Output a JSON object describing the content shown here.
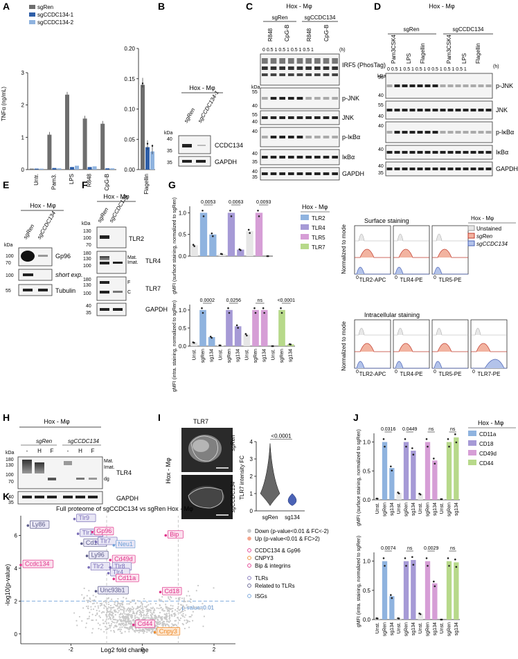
{
  "panels": {
    "A": {
      "label": "A"
    },
    "B": {
      "label": "B"
    },
    "C": {
      "label": "C"
    },
    "D": {
      "label": "D"
    },
    "E": {
      "label": "E"
    },
    "F": {
      "label": "F"
    },
    "G": {
      "label": "G"
    },
    "H": {
      "label": "H"
    },
    "I": {
      "label": "I"
    },
    "J": {
      "label": "J"
    },
    "K": {
      "label": "K"
    }
  },
  "common": {
    "hox": "Hox - Mφ",
    "sgren": "sgRen",
    "sgccdc": "sgCCDC134",
    "kda": "kDa",
    "gapdh": "GAPDH",
    "unst": "Unst.",
    "sg134": "sg134"
  },
  "panelA": {
    "legend": [
      "sgRen",
      "sgCCDC134-1",
      "sgCCDC134-2"
    ],
    "ylabel": "TNFα (ng/mL)",
    "colors": [
      "#6e6e6e",
      "#2f5fa8",
      "#8fb3df"
    ]
  },
  "panelB": {
    "title": "Hox - Mφ",
    "lanes": [
      "sgRen",
      "sgCCDC134-1"
    ],
    "rows": [
      "CCDC134",
      "GAPDH"
    ],
    "ladder": [
      [
        "40",
        "35"
      ],
      [
        "35"
      ]
    ]
  },
  "panelC": {
    "title": "Hox - Mφ",
    "groups": [
      "sgRen",
      "sgCCDC134"
    ],
    "treat": [
      "R848",
      "CpG-B",
      "R848",
      "CpG-B"
    ],
    "times": "0 0.5 1 0.5 1 0.5 1 0.5 1",
    "hlabel": "(h)",
    "rows": [
      "IRF5 (PhosTag)",
      "p-JNK",
      "JNK",
      "p-IκBα",
      "IκBα",
      "GAPDH"
    ]
  },
  "panelD": {
    "title": "Hox - Mφ",
    "groups": [
      "sgRen",
      "sgCCDC134"
    ],
    "treat": [
      "Pam3CSK4",
      "LPS",
      "Flagellin",
      "Pam3CSK4",
      "LPS",
      "Flagellin"
    ],
    "hlabel": "(h)",
    "rows": [
      "p-JNK",
      "JNK",
      "p-IκBα",
      "IκBα",
      "GAPDH"
    ]
  },
  "panelE": {
    "title": "Hox - Mφ",
    "rows": [
      "Gp96",
      "short exp.",
      "Tubulin"
    ]
  },
  "panelF": {
    "title": "Hox - Mφ",
    "rows": [
      "TLR2",
      "TLR4",
      "TLR7",
      "GAPDH"
    ],
    "marks": [
      "Mat.",
      "Imat.",
      "F",
      "C"
    ]
  },
  "panelG": {
    "legend_title": "Hox - Mφ",
    "legend": [
      "TLR2",
      "TLR4",
      "TLR5",
      "TLR7"
    ],
    "colors": [
      "#8fb3df",
      "#a69ad6",
      "#d69ed6",
      "#b7d98a"
    ],
    "ylab_top": "gMFI (surface staining, normalized to sgRen)",
    "ylab_bot": "gMFI (intra. staining, normalized to sgRen)",
    "p_top": [
      "0.0053",
      "0.0063",
      "0.0093"
    ],
    "p_bot": [
      "0.0002",
      "0.0256",
      "ns",
      "<0.0001"
    ],
    "hist_top_title": "Surface staining",
    "hist_bot_title": "Intracellular staining",
    "hist_ylabel": "Normalized to mode",
    "hist_top": [
      "TLR2-APC",
      "TLR4-PE",
      "TLR5-PE"
    ],
    "hist_bot": [
      "TLR2-APC",
      "TLR4-PE",
      "TLR5-PE",
      "TLR7-PE"
    ],
    "hist_legend": [
      "Unstained",
      "sgRen",
      "sgCCDC134"
    ]
  },
  "panelH": {
    "title": "Hox - Mφ",
    "lanes": [
      "-",
      "H",
      "F",
      "-",
      "H",
      "F"
    ],
    "rows": [
      "TLR4",
      "GAPDH"
    ],
    "marks": [
      "Mat.",
      "Imat.",
      "dg"
    ]
  },
  "panelI": {
    "title": "TLR7",
    "side": "Hox - Mφ",
    "ylabel": "TLR7 intensity FC",
    "p": "<0.0001",
    "x": [
      "sgRen",
      "sg134"
    ]
  },
  "panelJ": {
    "legend_title": "Hox - Mφ",
    "legend": [
      "CD11a",
      "CD18",
      "CD49d",
      "CD44"
    ],
    "colors": [
      "#8fb3df",
      "#a69ad6",
      "#d69ed6",
      "#b7d98a"
    ],
    "ylab_top": "gMFI (surface staining, normalized to sgRen)",
    "ylab_bot": "gMFI (intra. staining, normalized to sgRen)",
    "p_top": [
      "0.0316",
      "0.0449",
      "ns",
      "ns"
    ],
    "p_bot": [
      "0.0074",
      "ns",
      "0.0029",
      "ns"
    ]
  },
  "panelK": {
    "title": "Full proteome of sgCCDC134 vs sgRen Hox - Mφ",
    "xlabel": "Log2 fold change",
    "ylabel": "-log10(p-value)",
    "pline": "p-value=0.01",
    "legend": [
      "Down (p-value<0.01 & FC<-2)",
      "Up (p-value<0.01 & FC>2)",
      "CCDC134 & Gp96",
      "CNPY3",
      "Bip & integrins",
      "TLRs",
      "Related to TLRs",
      "ISGs"
    ],
    "legend_colors": [
      "#c8c8c8",
      "#f4a58c",
      "#e0338a",
      "#ee8a2a",
      "#e0338a",
      "#7b6fb8",
      "#5c5c8a",
      "#6fa0d8"
    ]
  },
  "chart_data": [
    {
      "type": "bar",
      "id": "A-main",
      "categories": [
        "Untr.",
        "Pam3.",
        "LPS",
        "R848",
        "CpG-B"
      ],
      "ylabel": "TNFα (ng/mL)",
      "ylim": [
        0,
        3
      ],
      "yticks": [
        0,
        1,
        2,
        3
      ],
      "series": [
        {
          "name": "sgRen",
          "values": [
            0.03,
            1.08,
            2.32,
            1.58,
            1.42
          ]
        },
        {
          "name": "sgCCDC134-1",
          "values": [
            0.03,
            0.05,
            0.08,
            0.08,
            0.04
          ]
        },
        {
          "name": "sgCCDC134-2",
          "values": [
            0.03,
            0.04,
            0.12,
            0.1,
            0.04
          ]
        }
      ]
    },
    {
      "type": "bar",
      "id": "A-flag",
      "categories": [
        "Flagellin"
      ],
      "ylim": [
        0,
        0.2
      ],
      "yticks": [
        0.0,
        0.05,
        0.1,
        0.15,
        0.2
      ],
      "yticklabels": [
        "0.00",
        "0.05",
        "0.10",
        "0.15",
        "0.20"
      ],
      "series": [
        {
          "name": "sgRen",
          "values": [
            0.14
          ]
        },
        {
          "name": "sgCCDC134-1",
          "values": [
            0.037
          ]
        },
        {
          "name": "sgCCDC134-2",
          "values": [
            0.03
          ]
        }
      ]
    },
    {
      "type": "bar",
      "id": "G-top",
      "categories": [
        "Unst.",
        "sgRen",
        "sg134",
        "Unst.",
        "sgRen",
        "sg134",
        "Unst.",
        "sgRen",
        "sg134"
      ],
      "ylim": [
        0,
        1.0
      ],
      "yticks": [
        0,
        0.5,
        1.0
      ],
      "yticklabels": [
        "0.0",
        "0.5",
        "1.0"
      ],
      "values": [
        0.25,
        1.0,
        0.5,
        0.05,
        1.0,
        0.15,
        0.58,
        1.0,
        0.0
      ],
      "groups": [
        "TLR2",
        "TLR4",
        "TLR5"
      ]
    },
    {
      "type": "bar",
      "id": "G-bot",
      "categories": [
        "Unst.",
        "sgRen",
        "sg134",
        "Unst.",
        "sgRen",
        "sg134",
        "Unst.",
        "sgRen",
        "sg134",
        "Unst.",
        "sgRen",
        "sg134"
      ],
      "ylim": [
        0,
        1.0
      ],
      "yticks": [
        0,
        0.5,
        1.0
      ],
      "yticklabels": [
        "0.0",
        "0.5",
        "1.0"
      ],
      "values": [
        0.1,
        1.0,
        0.25,
        0.02,
        1.0,
        0.55,
        0.32,
        1.0,
        1.0,
        0.0,
        1.0,
        0.05
      ],
      "groups": [
        "TLR2",
        "TLR4",
        "TLR5",
        "TLR7"
      ]
    },
    {
      "type": "bar",
      "id": "J-top",
      "categories": [
        "Unst.",
        "sgRen",
        "sg134",
        "Unst.",
        "sgRen",
        "sg134",
        "Unst.",
        "sgRen",
        "sg134",
        "Unst.",
        "sgRen",
        "sg134"
      ],
      "ylim": [
        0,
        1.0
      ],
      "yticks": [
        0,
        0.5,
        1.0
      ],
      "yticklabels": [
        "0.0",
        "0.5",
        "1.0"
      ],
      "values": [
        0.02,
        1.0,
        0.55,
        0.12,
        1.0,
        0.85,
        0.1,
        1.0,
        0.68,
        0.01,
        1.0,
        1.08
      ],
      "groups": [
        "CD11a",
        "CD18",
        "CD49d",
        "CD44"
      ]
    },
    {
      "type": "bar",
      "id": "J-bot",
      "categories": [
        "Unst.",
        "sgRen",
        "sg134",
        "Unst.",
        "sgRen",
        "sg134",
        "Unst.",
        "sgRen",
        "sg134",
        "Unst.",
        "sgRen",
        "sg134"
      ],
      "ylim": [
        0,
        1.0
      ],
      "yticks": [
        0,
        0.5,
        1.0
      ],
      "yticklabels": [
        "0.0",
        "0.5",
        "1.0"
      ],
      "values": [
        0.02,
        1.0,
        0.4,
        0.02,
        1.0,
        1.02,
        0.1,
        1.0,
        0.62,
        0.0,
        1.0,
        0.98
      ],
      "groups": [
        "CD11a",
        "CD18",
        "CD49d",
        "CD44"
      ]
    },
    {
      "type": "scatter",
      "id": "K-volcano",
      "xlabel": "Log2 fold change",
      "ylabel": "-log10(p-value)",
      "xlim": [
        -3.4,
        2.6
      ],
      "ylim": [
        -0.6,
        7.2
      ],
      "xticks": [
        -2,
        0,
        2
      ],
      "yticks": [
        0,
        2,
        4,
        6
      ],
      "labeled": [
        {
          "label": "Ly86",
          "x": -3.2,
          "y": 6.6,
          "group": "Related to TLRs"
        },
        {
          "label": "Tlr9",
          "x": -1.9,
          "y": 7.0,
          "group": "TLRs"
        },
        {
          "label": "Tlr13",
          "x": -1.8,
          "y": 6.1,
          "group": "TLRs"
        },
        {
          "label": "Gp96",
          "x": -1.4,
          "y": 6.2,
          "group": "CCDC134 & Gp96"
        },
        {
          "label": "Cd180",
          "x": -1.7,
          "y": 5.5,
          "group": "Related to TLRs"
        },
        {
          "label": "Tlr7",
          "x": -1.3,
          "y": 5.6,
          "group": "TLRs"
        },
        {
          "label": "Neu1",
          "x": -0.8,
          "y": 5.4,
          "group": "ISGs"
        },
        {
          "label": "Bip",
          "x": 0.65,
          "y": 6.0,
          "group": "Bip & integrins"
        },
        {
          "label": "Ccdc134",
          "x": -3.4,
          "y": 4.2,
          "group": "CCDC134 & Gp96"
        },
        {
          "label": "Ly96",
          "x": -1.55,
          "y": 4.75,
          "group": "Related to TLRs"
        },
        {
          "label": "Cd49d",
          "x": -0.9,
          "y": 4.5,
          "group": "Bip & integrins"
        },
        {
          "label": "Tlr2",
          "x": -1.5,
          "y": 4.05,
          "group": "TLRs"
        },
        {
          "label": "Tlr8",
          "x": -0.9,
          "y": 4.05,
          "group": "TLRs"
        },
        {
          "label": "Tlr4",
          "x": -0.95,
          "y": 3.7,
          "group": "TLRs"
        },
        {
          "label": "Cd11a",
          "x": -0.8,
          "y": 3.35,
          "group": "Bip & integrins"
        },
        {
          "label": "Unc93b1",
          "x": -1.3,
          "y": 2.6,
          "group": "Related to TLRs"
        },
        {
          "label": "Cd18",
          "x": 0.5,
          "y": 2.55,
          "group": "Bip & integrins"
        },
        {
          "label": "Cd44",
          "x": -0.25,
          "y": 0.55,
          "group": "Bip & integrins"
        },
        {
          "label": "Cnpy3",
          "x": 0.35,
          "y": 0.1,
          "group": "CNPY3"
        }
      ],
      "thresholds": {
        "log2fc": [
          -1,
          1
        ],
        "neglog10p": 2
      }
    }
  ]
}
